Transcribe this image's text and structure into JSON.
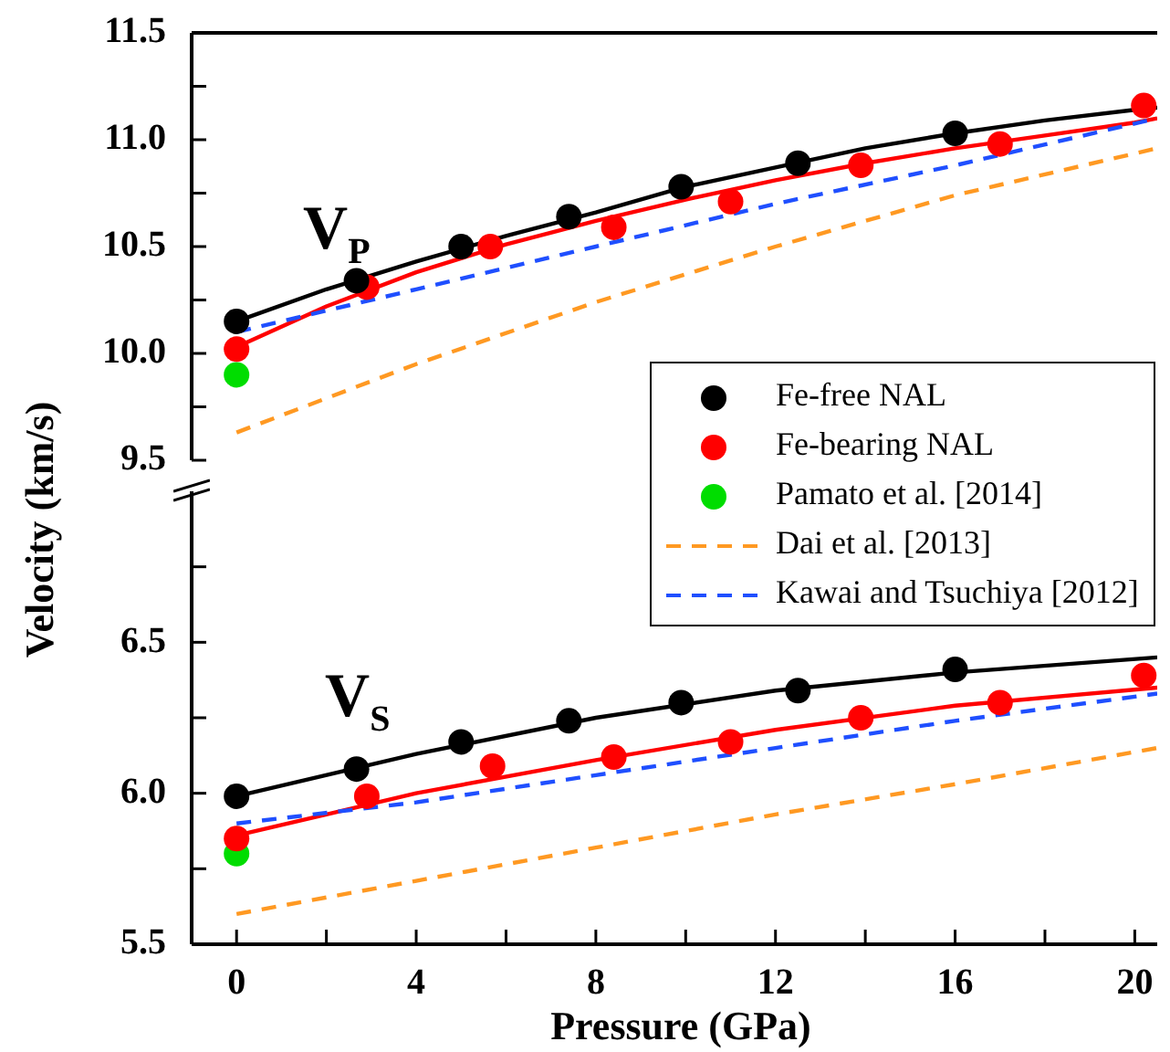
{
  "chart_data": [
    {
      "type": "scatter",
      "ylabel": "Velocity (km/s)",
      "annotations": [
        "V$_{P}$"
      ],
      "xlim": [
        -1,
        20.5
      ],
      "ylim": [
        9.5,
        11.5
      ],
      "yticks": [
        9.5,
        {
          "value": 9.75,
          "label": null
        },
        {
          "value": 10,
          "label": "10.0"
        },
        {
          "value": 10.25,
          "label": null
        },
        10.5,
        {
          "value": 10.75,
          "label": null
        },
        {
          "value": 11,
          "label": "11.0"
        },
        {
          "value": 11.25,
          "label": null
        },
        11.5
      ],
      "tick_labels": "y",
      "legend": "bottom right",
      "series": [
        {
          "name": "Fe-free NAL",
          "type": "scatter",
          "marker": "circle",
          "color": "#000000",
          "x": [
            0,
            2.67,
            5.0,
            7.4,
            9.9,
            12.5,
            16.0
          ],
          "values": [
            10.15,
            10.34,
            10.5,
            10.64,
            10.78,
            10.89,
            11.03
          ]
        },
        {
          "name": "Fe-bearing NAL",
          "type": "scatter",
          "marker": "circle",
          "color": "#ff0000",
          "x": [
            0,
            2.9,
            5.65,
            8.4,
            11.0,
            13.9,
            17.0,
            20.2
          ],
          "values": [
            10.02,
            10.31,
            10.5,
            10.59,
            10.71,
            10.88,
            10.98,
            11.16
          ]
        },
        {
          "name": "Pamato et al. [2014]",
          "type": "scatter",
          "marker": "circle",
          "color": "#00dd00",
          "x": [
            0
          ],
          "values": [
            9.9
          ]
        },
        {
          "name": "Dai et al. [2013]",
          "type": "line",
          "marker": "none",
          "line_style": "dashed",
          "color": "#ff9922",
          "x": [
            0,
            4,
            8,
            12,
            16,
            20.5
          ],
          "values": [
            9.63,
            9.95,
            10.24,
            10.5,
            10.74,
            10.96
          ]
        },
        {
          "name": "Kawai and Tsuchiya [2012]",
          "type": "line",
          "marker": "none",
          "line_style": "dashed",
          "color": "#1f4fff",
          "x": [
            0,
            4,
            8,
            12,
            16,
            20.5
          ],
          "values": [
            10.1,
            10.3,
            10.5,
            10.7,
            10.88,
            11.1
          ]
        },
        {
          "type": "line",
          "marker": "none",
          "line_style": "solid",
          "color": "#000000",
          "x": [
            0,
            2,
            4,
            6,
            8,
            10,
            12,
            14,
            16,
            18,
            20,
            20.5
          ],
          "values": [
            10.15,
            10.3,
            10.43,
            10.55,
            10.66,
            10.78,
            10.87,
            10.96,
            11.03,
            11.09,
            11.14,
            11.15
          ]
        },
        {
          "type": "line",
          "marker": "none",
          "line_style": "solid",
          "color": "#ff0000",
          "x": [
            0,
            2,
            4,
            6,
            8,
            10,
            12,
            14,
            16,
            18,
            20,
            20.5
          ],
          "values": [
            10.03,
            10.22,
            10.38,
            10.51,
            10.62,
            10.72,
            10.81,
            10.89,
            10.96,
            11.02,
            11.08,
            11.1
          ]
        }
      ]
    },
    {
      "type": "scatter",
      "xlabel": "Pressure (GPa)",
      "annotations": [
        "V$_{S}$"
      ],
      "xlim": [
        -1,
        20.5
      ],
      "xticks": [
        0,
        {
          "value": 2,
          "label": null
        },
        4,
        {
          "value": 6,
          "label": null
        },
        8,
        {
          "value": 10,
          "label": null
        },
        12,
        {
          "value": 14,
          "label": null
        },
        16,
        {
          "value": 18,
          "label": null
        },
        20
      ],
      "ylim": [
        5.5,
        7.0
      ],
      "yticks": [
        5.5,
        {
          "value": 5.75,
          "label": null
        },
        {
          "value": 6,
          "label": "6.0"
        },
        {
          "value": 6.25,
          "label": null
        },
        6.5,
        {
          "value": 6.75,
          "label": null
        }
      ],
      "series": [
        {
          "type": "scatter",
          "marker": "circle",
          "color": "#000000",
          "x": [
            0,
            2.67,
            5.0,
            7.4,
            9.9,
            12.5,
            16.0
          ],
          "values": [
            5.99,
            6.08,
            6.17,
            6.24,
            6.3,
            6.34,
            6.41
          ]
        },
        {
          "type": "scatter",
          "marker": "circle",
          "color": "#ff0000",
          "x": [
            0,
            2.9,
            5.7,
            8.4,
            11.0,
            13.9,
            17.0,
            20.2
          ],
          "values": [
            5.85,
            5.99,
            6.09,
            6.12,
            6.17,
            6.25,
            6.3,
            6.39
          ]
        },
        {
          "type": "scatter",
          "marker": "circle",
          "color": "#00dd00",
          "x": [
            0
          ],
          "values": [
            5.8
          ]
        },
        {
          "type": "line",
          "marker": "none",
          "line_style": "dashed",
          "color": "#ff9922",
          "x": [
            0,
            4,
            8,
            12,
            16,
            20.5
          ],
          "values": [
            5.6,
            5.71,
            5.82,
            5.93,
            6.03,
            6.15
          ]
        },
        {
          "type": "line",
          "marker": "none",
          "line_style": "dashed",
          "color": "#1f4fff",
          "x": [
            0,
            4,
            8,
            12,
            16,
            20.5
          ],
          "values": [
            5.9,
            5.97,
            6.06,
            6.15,
            6.24,
            6.33
          ]
        },
        {
          "type": "line",
          "marker": "none",
          "line_style": "solid",
          "color": "#000000",
          "x": [
            0,
            4,
            8,
            12,
            16,
            20.5
          ],
          "values": [
            5.99,
            6.13,
            6.25,
            6.34,
            6.4,
            6.45
          ]
        },
        {
          "type": "line",
          "marker": "none",
          "line_style": "solid",
          "color": "#ff0000",
          "x": [
            0,
            2,
            4,
            8,
            12,
            16,
            20.5
          ],
          "values": [
            5.86,
            5.93,
            6.0,
            6.11,
            6.21,
            6.29,
            6.35
          ]
        }
      ]
    }
  ]
}
